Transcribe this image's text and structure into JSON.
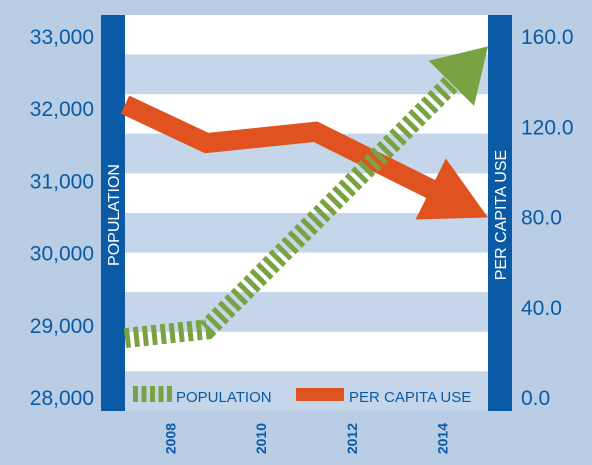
{
  "chart_data": {
    "type": "line",
    "x": [
      2007,
      2009,
      2011,
      2013,
      2015
    ],
    "x_tick_labels": [
      "2008",
      "2010",
      "2012",
      "2014"
    ],
    "x_tick_values": [
      2008,
      2010,
      2012,
      2014
    ],
    "y_left": {
      "label": "POPULATION",
      "ticks": [
        "33,000",
        "32,000",
        "31,000",
        "30,000",
        "29,000",
        "28,000"
      ],
      "range": [
        28000,
        33000
      ]
    },
    "y_right": {
      "label": "PER CAPITA USE",
      "ticks": [
        "160.0",
        "120.0",
        "80.0",
        "40.0",
        "0.0"
      ],
      "range": [
        0,
        160
      ]
    },
    "series": [
      {
        "name": "POPULATION",
        "axis": "left",
        "style": "dashed-arrow",
        "color": "#79a342",
        "x": [
          2007,
          2008.8,
          2015
        ],
        "values": [
          28830,
          28950,
          32870
        ]
      },
      {
        "name": "PER CAPITA USE",
        "axis": "right",
        "style": "solid-arrow",
        "color": "#e0521f",
        "x": [
          2007,
          2008.8,
          2011.2,
          2015
        ],
        "values": [
          130,
          113,
          118,
          80
        ]
      }
    ],
    "grid": true,
    "legend": "bottom"
  },
  "colors": {
    "background": "#b9cde5",
    "plot_band_light": "#ffffff",
    "plot_band_dark": "#c6d6ea",
    "axis_bar": "#0a5aa5",
    "text": "#0a5aa5",
    "population": "#79a342",
    "per_capita": "#e0521f"
  }
}
